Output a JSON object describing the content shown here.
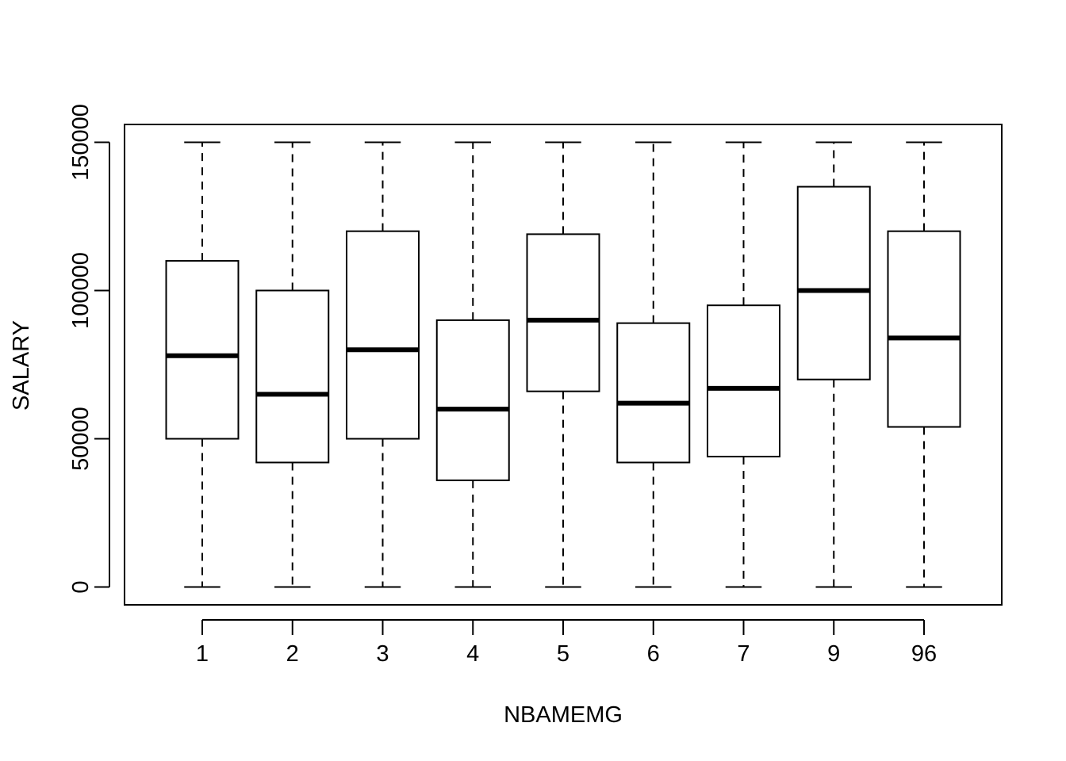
{
  "chart_data": {
    "type": "boxplot",
    "xlabel": "NBAMEMG",
    "ylabel": "SALARY",
    "categories": [
      "1",
      "2",
      "3",
      "4",
      "5",
      "6",
      "7",
      "9",
      "96"
    ],
    "boxes": [
      {
        "category": "1",
        "min": 0,
        "q1": 50000,
        "median": 78000,
        "q3": 110000,
        "max": 150000
      },
      {
        "category": "2",
        "min": 0,
        "q1": 42000,
        "median": 65000,
        "q3": 100000,
        "max": 150000
      },
      {
        "category": "3",
        "min": 0,
        "q1": 50000,
        "median": 80000,
        "q3": 120000,
        "max": 150000
      },
      {
        "category": "4",
        "min": 0,
        "q1": 36000,
        "median": 60000,
        "q3": 90000,
        "max": 150000
      },
      {
        "category": "5",
        "min": 0,
        "q1": 66000,
        "median": 90000,
        "q3": 119000,
        "max": 150000
      },
      {
        "category": "6",
        "min": 0,
        "q1": 42000,
        "median": 62000,
        "q3": 89000,
        "max": 150000
      },
      {
        "category": "7",
        "min": 0,
        "q1": 44000,
        "median": 67000,
        "q3": 95000,
        "max": 150000
      },
      {
        "category": "9",
        "min": 0,
        "q1": 70000,
        "median": 100000,
        "q3": 135000,
        "max": 150000
      },
      {
        "category": "96",
        "min": 0,
        "q1": 54000,
        "median": 84000,
        "q3": 120000,
        "max": 150000
      }
    ],
    "yticks": [
      0,
      50000,
      100000,
      150000
    ],
    "ylim": [
      -6000,
      156000
    ],
    "grid": false,
    "legend": "none",
    "colors": {
      "stroke": "#000000",
      "box_fill": "#ffffff"
    }
  }
}
